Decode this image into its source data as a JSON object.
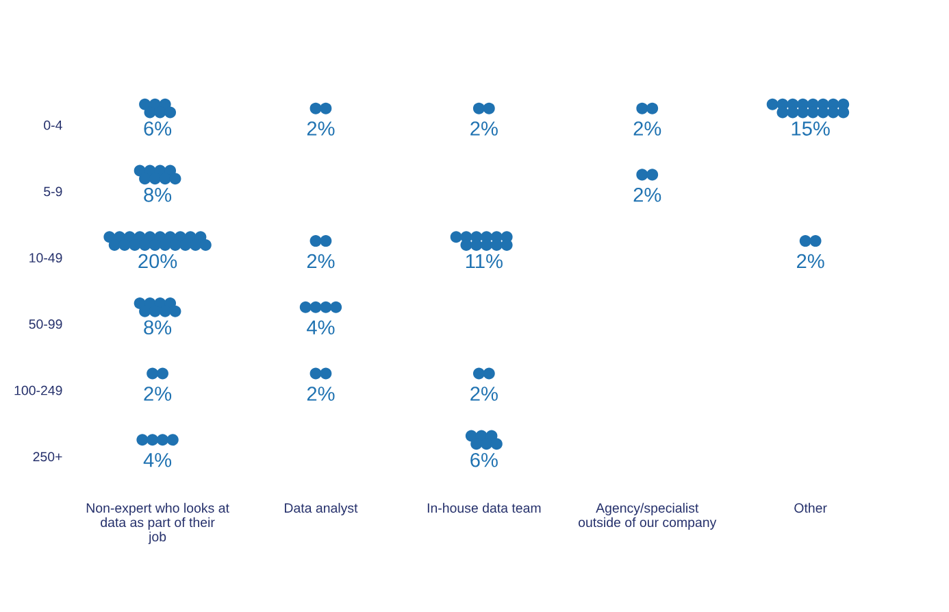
{
  "chart_data": {
    "type": "heatmap",
    "categories": [
      "Non-expert who looks at data as part of their job",
      "Data analyst",
      "In-house data team",
      "Agency/specialist outside of our company",
      "Other"
    ],
    "y_categories": [
      "0-4",
      "5-9",
      "10-49",
      "50-99",
      "100-249",
      "250+"
    ],
    "cells": [
      [
        6,
        2,
        2,
        2,
        15
      ],
      [
        8,
        null,
        null,
        2,
        null
      ],
      [
        20,
        2,
        11,
        null,
        2
      ],
      [
        8,
        4,
        null,
        null,
        null
      ],
      [
        2,
        2,
        2,
        null,
        null
      ],
      [
        4,
        null,
        6,
        null,
        null
      ]
    ],
    "cell_labels": [
      [
        "6%",
        "2%",
        "2%",
        "2%",
        "15%"
      ],
      [
        "8%",
        null,
        null,
        "2%",
        null
      ],
      [
        "20%",
        "2%",
        "11%",
        null,
        "2%"
      ],
      [
        "8%",
        "4%",
        null,
        null,
        null
      ],
      [
        "2%",
        "2%",
        "2%",
        null,
        null
      ],
      [
        "4%",
        null,
        "6%",
        null,
        null
      ]
    ],
    "color": "#1f72b1"
  }
}
